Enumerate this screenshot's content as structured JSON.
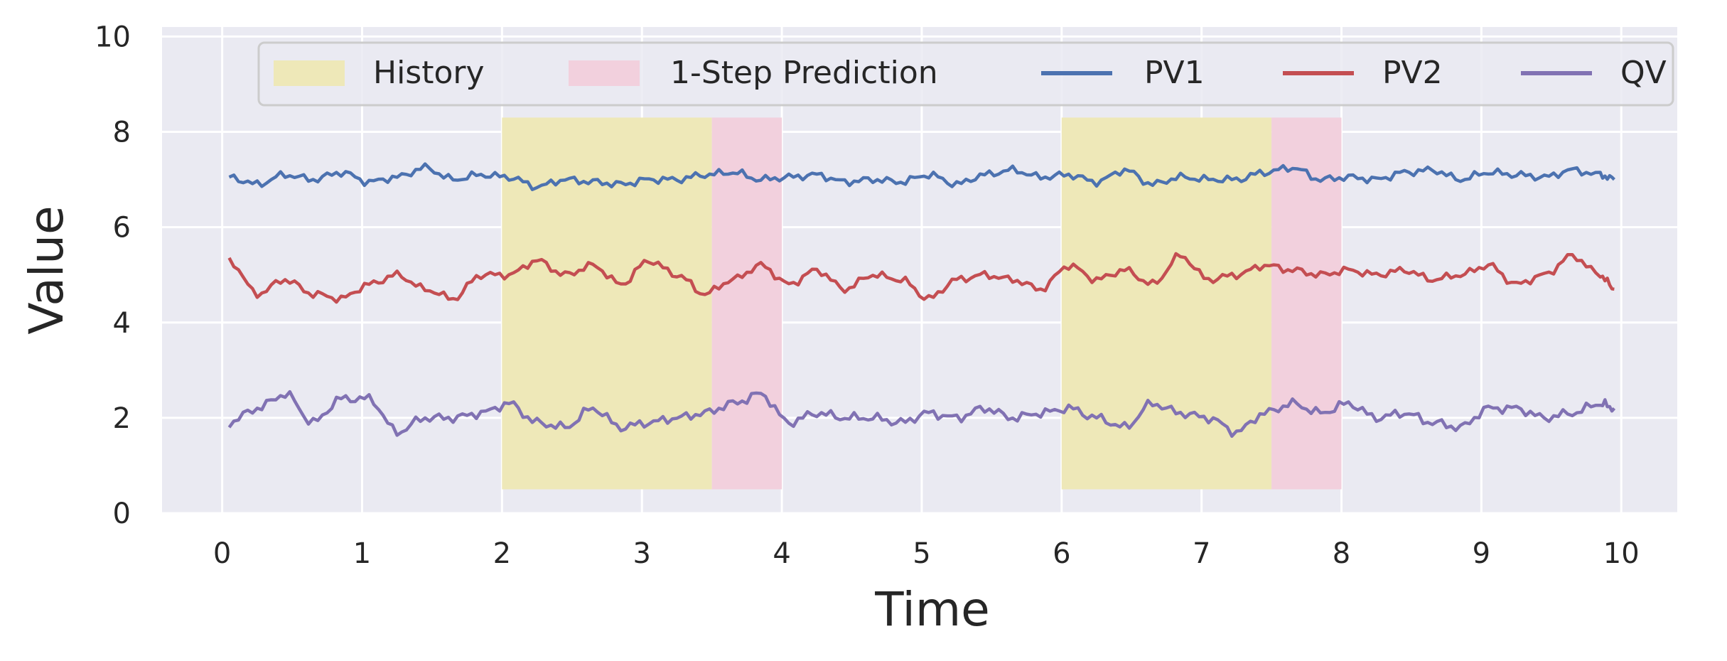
{
  "chart_data": {
    "type": "line",
    "title": "",
    "xlabel": "Time",
    "ylabel": "Value",
    "xlim": [
      -0.43,
      10.4
    ],
    "ylim": [
      0,
      10.2
    ],
    "xticks": [
      0,
      1,
      2,
      3,
      4,
      5,
      6,
      7,
      8,
      9,
      10
    ],
    "yticks": [
      0,
      2,
      4,
      6,
      8,
      10
    ],
    "grid": true,
    "legend_position": "top",
    "band_y_range": [
      0.5,
      8.3
    ],
    "bands": [
      {
        "name": "History",
        "x_start": 2.0,
        "x_end": 3.5
      },
      {
        "name": "1-Step Prediction",
        "x_start": 3.5,
        "x_end": 4.0
      },
      {
        "name": "History",
        "x_start": 6.0,
        "x_end": 7.5
      },
      {
        "name": "1-Step Prediction",
        "x_start": 7.5,
        "x_end": 8.0
      }
    ],
    "colors": {
      "History": "#eee8b8",
      "1-Step Prediction": "#f2d0dd",
      "PV1": "#4c72b0",
      "PV2": "#c44e52",
      "QV": "#8172b3",
      "background": "#eaeaf2",
      "grid": "#ffffff"
    },
    "legend": [
      "History",
      "1-Step Prediction",
      "PV1",
      "PV2",
      "QV"
    ],
    "x": [
      0.05,
      0.25,
      0.45,
      0.65,
      0.85,
      1.05,
      1.25,
      1.45,
      1.65,
      1.85,
      2.05,
      2.25,
      2.45,
      2.65,
      2.85,
      3.05,
      3.25,
      3.45,
      3.65,
      3.85,
      4.05,
      4.25,
      4.45,
      4.65,
      4.85,
      5.05,
      5.25,
      5.45,
      5.65,
      5.85,
      6.05,
      6.25,
      6.45,
      6.65,
      6.85,
      7.05,
      7.25,
      7.45,
      7.65,
      7.85,
      8.05,
      8.25,
      8.45,
      8.65,
      8.85,
      9.05,
      9.25,
      9.45,
      9.65,
      9.85,
      9.95
    ],
    "series": [
      {
        "name": "PV1",
        "values": [
          7.05,
          6.9,
          7.1,
          7.0,
          7.15,
          6.95,
          7.05,
          7.25,
          7.0,
          7.1,
          7.05,
          6.85,
          7.0,
          6.95,
          6.9,
          7.0,
          7.0,
          7.1,
          7.15,
          7.0,
          7.05,
          7.1,
          6.95,
          7.0,
          6.95,
          7.1,
          6.9,
          7.1,
          7.2,
          7.05,
          7.1,
          6.95,
          7.2,
          6.9,
          7.05,
          7.0,
          7.0,
          7.15,
          7.25,
          7.0,
          7.05,
          7.0,
          7.15,
          7.2,
          7.0,
          7.15,
          7.1,
          7.05,
          7.2,
          7.1,
          7.0
        ]
      },
      {
        "name": "PV2",
        "values": [
          5.3,
          4.6,
          4.9,
          4.6,
          4.5,
          4.8,
          5.0,
          4.7,
          4.5,
          5.0,
          5.0,
          5.3,
          5.0,
          5.2,
          4.8,
          5.3,
          5.0,
          4.6,
          4.9,
          5.2,
          4.8,
          5.1,
          4.7,
          5.0,
          4.9,
          4.5,
          4.9,
          5.0,
          4.9,
          4.7,
          5.2,
          4.9,
          5.1,
          4.8,
          5.4,
          4.9,
          5.0,
          5.2,
          5.1,
          5.0,
          5.1,
          5.0,
          5.1,
          4.9,
          5.0,
          5.2,
          4.8,
          5.0,
          5.4,
          5.0,
          4.7
        ]
      },
      {
        "name": "QV",
        "values": [
          1.9,
          2.2,
          2.5,
          1.9,
          2.4,
          2.4,
          1.7,
          2.0,
          2.0,
          2.1,
          2.3,
          1.9,
          1.8,
          2.2,
          1.8,
          1.9,
          2.0,
          2.1,
          2.3,
          2.5,
          1.9,
          2.1,
          2.0,
          2.0,
          1.9,
          2.1,
          2.0,
          2.2,
          2.0,
          2.1,
          2.2,
          2.0,
          1.8,
          2.3,
          2.1,
          2.0,
          1.7,
          2.1,
          2.3,
          2.1,
          2.3,
          2.0,
          2.1,
          1.9,
          1.8,
          2.2,
          2.2,
          2.0,
          2.1,
          2.3,
          2.2
        ]
      }
    ]
  }
}
